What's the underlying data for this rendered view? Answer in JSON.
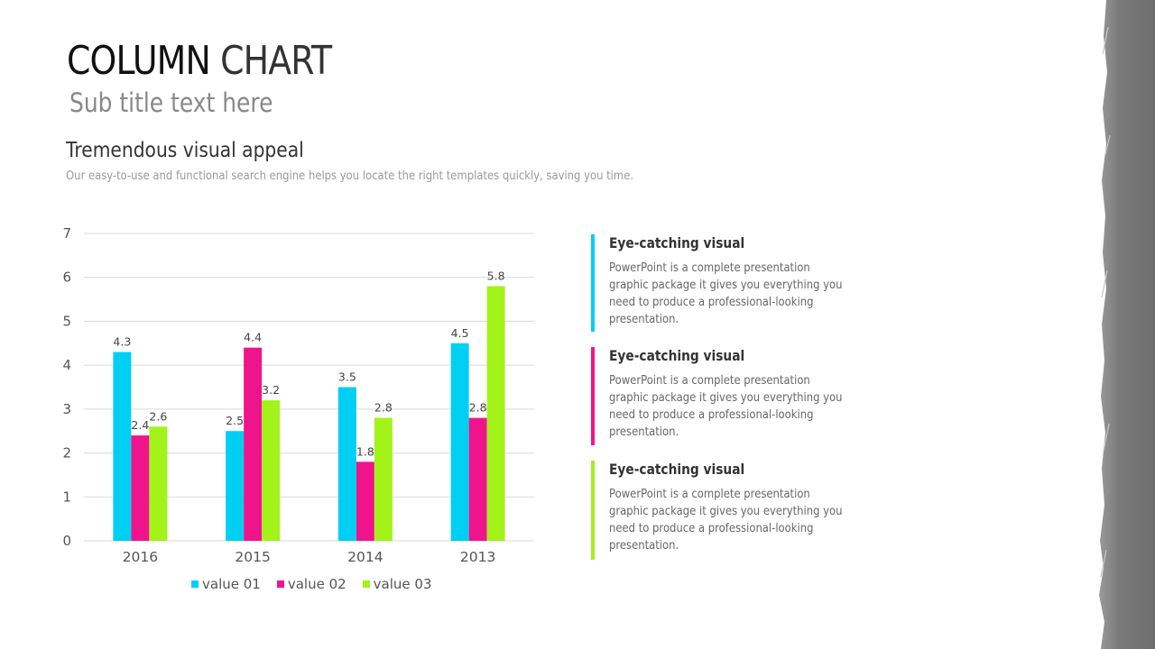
{
  "slide": {
    "title_bold": "COLUMN",
    "title_light": "CHART",
    "subtitle": "Sub title text here",
    "section_heading": "Tremendous visual appeal",
    "section_desc": "Our easy-to-use and functional search engine helps you locate the right templates quickly, saving you time."
  },
  "colors": {
    "series1": "#00CFF4",
    "series2": "#F0148C",
    "series3": "#A3F21A",
    "gridline": "#d9d9d9",
    "brush": "#7d7d7d"
  },
  "chart_data": {
    "type": "bar",
    "categories": [
      "2016",
      "2015",
      "2014",
      "2013"
    ],
    "series": [
      {
        "name": "value 01",
        "values": [
          4.3,
          2.5,
          3.5,
          4.5
        ]
      },
      {
        "name": "value 02",
        "values": [
          2.4,
          4.4,
          1.8,
          2.8
        ]
      },
      {
        "name": "value 03",
        "values": [
          2.6,
          3.2,
          2.8,
          5.8
        ]
      }
    ],
    "ylim": [
      0,
      7
    ],
    "yticks": [
      "0",
      "1",
      "2",
      "3",
      "4",
      "5",
      "6",
      "7"
    ],
    "grid": true,
    "data_labels": true,
    "legend": "bottom"
  },
  "info_items": [
    {
      "heading": "Eye-catching visual",
      "body": "PowerPoint is a complete presentation graphic package it gives you everything you need to produce a professional-looking presentation."
    },
    {
      "heading": "Eye-catching visual",
      "body": "PowerPoint is a complete presentation graphic package it gives you everything you need to produce a professional-looking presentation."
    },
    {
      "heading": "Eye-catching visual",
      "body": "PowerPoint is a complete presentation graphic package it gives you everything you need to produce a professional-looking presentation."
    }
  ]
}
